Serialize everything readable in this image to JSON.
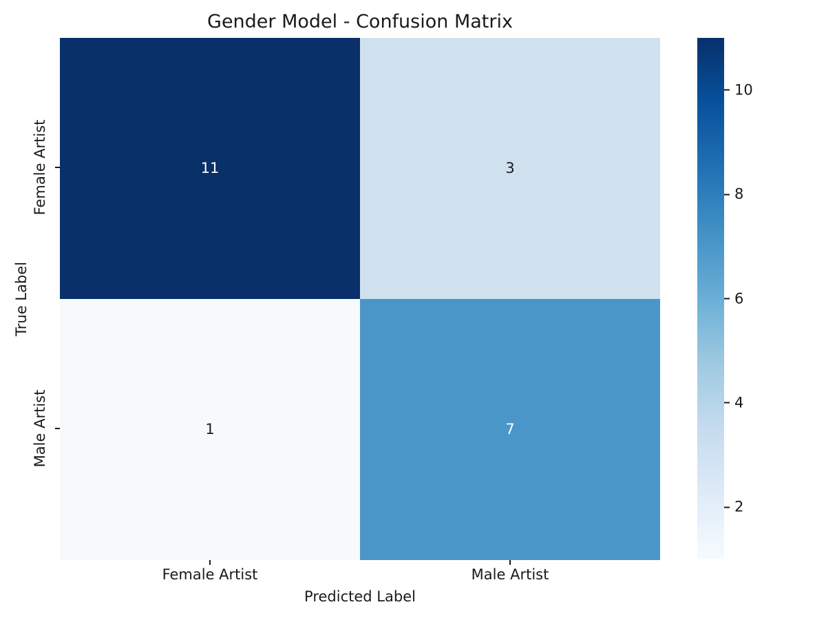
{
  "figure": {
    "background": "#ffffff",
    "text_color": "#1a1a1a"
  },
  "chart_data": {
    "type": "heatmap",
    "title": "Gender Model - Confusion Matrix",
    "xlabel": "Predicted Label",
    "ylabel": "True Label",
    "x_categories": [
      "Female Artist",
      "Male Artist"
    ],
    "y_categories": [
      "Female Artist",
      "Male Artist"
    ],
    "matrix": [
      [
        11,
        3
      ],
      [
        1,
        7
      ]
    ],
    "cells": [
      {
        "row": "Female Artist",
        "col": "Female Artist",
        "value": "11",
        "bg": "#0a3069",
        "fg": "#ffffff"
      },
      {
        "row": "Female Artist",
        "col": "Male Artist",
        "value": "3",
        "bg": "#cfe0ef",
        "fg": "#1a1a1a"
      },
      {
        "row": "Male Artist",
        "col": "Female Artist",
        "value": "1",
        "bg": "#f6fafd",
        "fg": "#1a1a1a"
      },
      {
        "row": "Male Artist",
        "col": "Male Artist",
        "value": "7",
        "bg": "#4a96c8",
        "fg": "#ffffff"
      }
    ],
    "colormap": "Blues",
    "grid": false,
    "legend_position": "colorbar-right",
    "colorbar": {
      "vmin": 1,
      "vmax": 11,
      "ticks": [
        10,
        8,
        6,
        4,
        2
      ],
      "gradient_top_to_bottom": [
        "#08306b",
        "#08519c",
        "#2171b5",
        "#4292c6",
        "#6baed6",
        "#9ecae1",
        "#c6dbef",
        "#deebf7",
        "#f7fbff"
      ]
    }
  }
}
